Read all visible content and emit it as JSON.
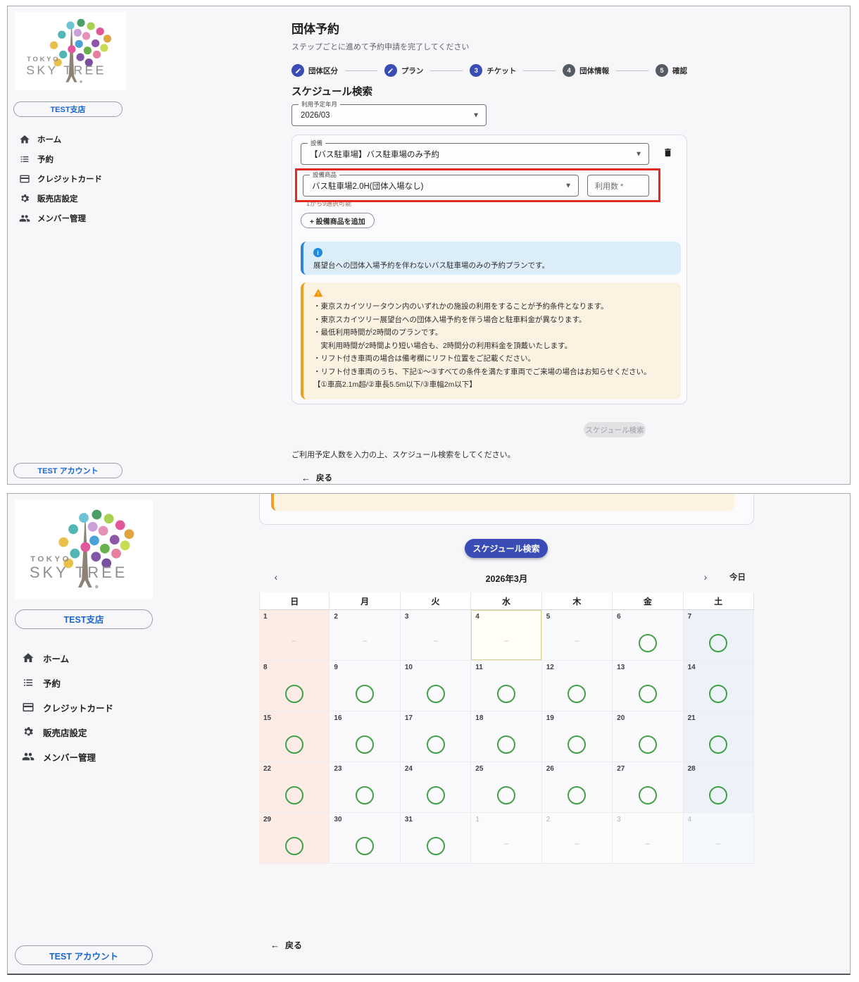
{
  "colors": {
    "primary_indigo": "#3a4cb5",
    "link_blue": "#1a66d0",
    "annotation_red": "#e02b20",
    "circle_green": "#43a047",
    "warning_orange": "#f0a020",
    "info_blue": "#1e88e5",
    "sunday_bg": "#fcece5",
    "saturday_bg": "#edf2f9"
  },
  "sidebar": {
    "logo_top": "TOKYO",
    "logo_main": "SKY TREE",
    "branch_button": "TEST支店",
    "account_button": "TEST アカウント",
    "menu": [
      {
        "icon": "home-icon",
        "label": "ホーム"
      },
      {
        "icon": "reservations-icon",
        "label": "予約"
      },
      {
        "icon": "credit-card-icon",
        "label": "クレジットカード"
      },
      {
        "icon": "store-settings-icon",
        "label": "販売店設定"
      },
      {
        "icon": "members-icon",
        "label": "メンバー管理"
      }
    ]
  },
  "form_screen": {
    "title": "団体予約",
    "subtitle": "ステップごとに進めて予約申請を完了してください",
    "stepper": [
      {
        "label": "団体区分",
        "state": "edit",
        "num": ""
      },
      {
        "label": "プラン",
        "state": "edit",
        "num": ""
      },
      {
        "label": "チケット",
        "state": "active",
        "num": "3"
      },
      {
        "label": "団体情報",
        "state": "pending",
        "num": "4"
      },
      {
        "label": "確認",
        "state": "pending",
        "num": "5"
      }
    ],
    "section_title": "スケジュール検索",
    "fields": {
      "month": {
        "label": "利用予定年月",
        "value": "2026/03"
      },
      "facility": {
        "label": "設備",
        "value": "【バス駐車場】バス駐車場のみ予約"
      },
      "product": {
        "label": "設備商品",
        "value": "バス駐車場2.0H(団体入場なし)",
        "helper": "1から9選択可能"
      },
      "usage": {
        "placeholder": "利用数 *"
      }
    },
    "add_product_button": "+ 設備商品を追加",
    "info_note": "展望台への団体入場予約を伴わないバス駐車場のみの予約プランです。",
    "warning_lines": [
      "・東京スカイツリータウン内のいずれかの施設の利用をすることが予約条件となります。",
      "・東京スカイツリー展望台への団体入場予約を伴う場合と駐車料金が異なります。",
      "・最低利用時間が2時間のプランです。",
      "　実利用時間が2時間より短い場合も、2時間分の利用料金を頂戴いたします。",
      "・リフト付き車両の場合は備考欄にリフト位置をご記載ください。",
      "・リフト付き車両のうち、下記①〜③すべての条件を満たす車両でご来場の場合はお知らせください。",
      "【①車高2.1m超/②車長5.5m以下/③車幅2m以下】"
    ],
    "search_button": "スケジュール検索",
    "search_hint": "ご利用予定人数を入力の上、スケジュール検索をしてください。",
    "back_link": "戻る"
  },
  "calendar_screen": {
    "search_button": "スケジュール検索",
    "month_title": "2026年3月",
    "today_button": "今日",
    "prev_icon": "‹",
    "next_icon": "›",
    "weekdays": [
      "日",
      "月",
      "火",
      "水",
      "木",
      "金",
      "土"
    ],
    "weeks": [
      [
        {
          "day": "1",
          "mark": "dash",
          "other": false,
          "today": false
        },
        {
          "day": "2",
          "mark": "dash",
          "other": false,
          "today": false
        },
        {
          "day": "3",
          "mark": "dash",
          "other": false,
          "today": false
        },
        {
          "day": "4",
          "mark": "dash",
          "other": false,
          "today": true
        },
        {
          "day": "5",
          "mark": "dash",
          "other": false,
          "today": false
        },
        {
          "day": "6",
          "mark": "circle",
          "other": false,
          "today": false
        },
        {
          "day": "7",
          "mark": "circle",
          "other": false,
          "today": false
        }
      ],
      [
        {
          "day": "8",
          "mark": "circle",
          "other": false,
          "today": false
        },
        {
          "day": "9",
          "mark": "circle",
          "other": false,
          "today": false
        },
        {
          "day": "10",
          "mark": "circle",
          "other": false,
          "today": false
        },
        {
          "day": "11",
          "mark": "circle",
          "other": false,
          "today": false
        },
        {
          "day": "12",
          "mark": "circle",
          "other": false,
          "today": false
        },
        {
          "day": "13",
          "mark": "circle",
          "other": false,
          "today": false
        },
        {
          "day": "14",
          "mark": "circle",
          "other": false,
          "today": false
        }
      ],
      [
        {
          "day": "15",
          "mark": "circle",
          "other": false,
          "today": false
        },
        {
          "day": "16",
          "mark": "circle",
          "other": false,
          "today": false
        },
        {
          "day": "17",
          "mark": "circle",
          "other": false,
          "today": false
        },
        {
          "day": "18",
          "mark": "circle",
          "other": false,
          "today": false
        },
        {
          "day": "19",
          "mark": "circle",
          "other": false,
          "today": false
        },
        {
          "day": "20",
          "mark": "circle",
          "other": false,
          "today": false
        },
        {
          "day": "21",
          "mark": "circle",
          "other": false,
          "today": false
        }
      ],
      [
        {
          "day": "22",
          "mark": "circle",
          "other": false,
          "today": false
        },
        {
          "day": "23",
          "mark": "circle",
          "other": false,
          "today": false
        },
        {
          "day": "24",
          "mark": "circle",
          "other": false,
          "today": false
        },
        {
          "day": "25",
          "mark": "circle",
          "other": false,
          "today": false
        },
        {
          "day": "26",
          "mark": "circle",
          "other": false,
          "today": false
        },
        {
          "day": "27",
          "mark": "circle",
          "other": false,
          "today": false
        },
        {
          "day": "28",
          "mark": "circle",
          "other": false,
          "today": false
        }
      ],
      [
        {
          "day": "29",
          "mark": "circle",
          "other": false,
          "today": false
        },
        {
          "day": "30",
          "mark": "circle",
          "other": false,
          "today": false
        },
        {
          "day": "31",
          "mark": "circle",
          "other": false,
          "today": false
        },
        {
          "day": "1",
          "mark": "dash",
          "other": true,
          "today": false
        },
        {
          "day": "2",
          "mark": "dash",
          "other": true,
          "today": false
        },
        {
          "day": "3",
          "mark": "dash",
          "other": true,
          "today": false
        },
        {
          "day": "4",
          "mark": "dash",
          "other": true,
          "today": false
        }
      ]
    ],
    "back_link": "戻る"
  }
}
